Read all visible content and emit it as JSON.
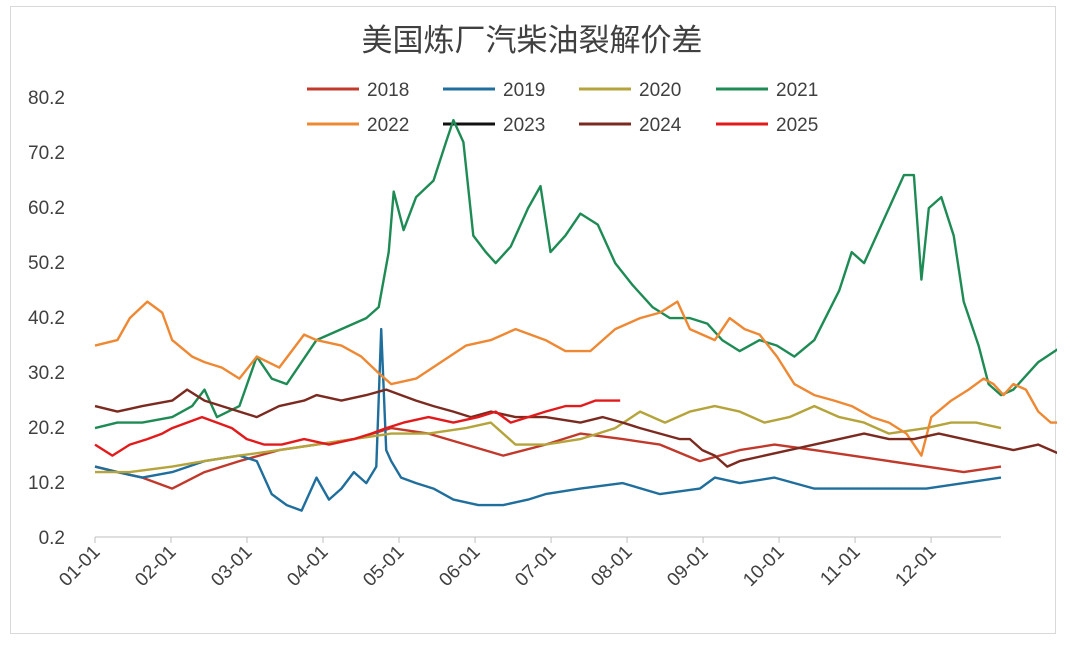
{
  "chart_data": {
    "type": "line",
    "title": "美国炼厂汽柴油裂解价差",
    "xlabel": "",
    "ylabel": "",
    "x_ticks": [
      "01-01",
      "02-01",
      "03-01",
      "04-01",
      "05-01",
      "06-01",
      "07-01",
      "08-01",
      "09-01",
      "10-01",
      "11-01",
      "12-01"
    ],
    "y_ticks": [
      "0.2",
      "10.2",
      "20.2",
      "30.2",
      "40.2",
      "50.2",
      "60.2",
      "70.2",
      "80.2"
    ],
    "ylim": [
      0.2,
      80.2
    ],
    "xlim_day_of_year": [
      1,
      365
    ],
    "x_unit": "day of year",
    "grid": false,
    "legend_position": "top",
    "series": [
      {
        "name": "2018",
        "color": "#c0392b",
        "points": [
          [
            1,
            13
          ],
          [
            10,
            12
          ],
          [
            20,
            11
          ],
          [
            32,
            9
          ],
          [
            45,
            12
          ],
          [
            59,
            14
          ],
          [
            75,
            16
          ],
          [
            90,
            17
          ],
          [
            105,
            18
          ],
          [
            120,
            20
          ],
          [
            135,
            19
          ],
          [
            150,
            17
          ],
          [
            165,
            15
          ],
          [
            182,
            17
          ],
          [
            196,
            19
          ],
          [
            213,
            18
          ],
          [
            228,
            17
          ],
          [
            244,
            14
          ],
          [
            260,
            16
          ],
          [
            274,
            17
          ],
          [
            290,
            16
          ],
          [
            305,
            15
          ],
          [
            320,
            14
          ],
          [
            335,
            13
          ],
          [
            350,
            12
          ],
          [
            365,
            13
          ]
        ]
      },
      {
        "name": "2019",
        "color": "#1f6e9c",
        "points": [
          [
            1,
            13
          ],
          [
            10,
            12
          ],
          [
            20,
            11
          ],
          [
            32,
            12
          ],
          [
            45,
            14
          ],
          [
            59,
            15
          ],
          [
            66,
            14
          ],
          [
            72,
            8
          ],
          [
            78,
            6
          ],
          [
            84,
            5
          ],
          [
            90,
            11
          ],
          [
            95,
            7
          ],
          [
            100,
            9
          ],
          [
            105,
            12
          ],
          [
            110,
            10
          ],
          [
            114,
            13
          ],
          [
            116,
            38
          ],
          [
            118,
            16
          ],
          [
            120,
            14
          ],
          [
            124,
            11
          ],
          [
            130,
            10
          ],
          [
            137,
            9
          ],
          [
            145,
            7
          ],
          [
            155,
            6
          ],
          [
            165,
            6
          ],
          [
            175,
            7
          ],
          [
            182,
            8
          ],
          [
            196,
            9
          ],
          [
            213,
            10
          ],
          [
            228,
            8
          ],
          [
            244,
            9
          ],
          [
            250,
            11
          ],
          [
            260,
            10
          ],
          [
            274,
            11
          ],
          [
            290,
            9
          ],
          [
            305,
            9
          ],
          [
            320,
            9
          ],
          [
            335,
            9
          ],
          [
            350,
            10
          ],
          [
            365,
            11
          ]
        ]
      },
      {
        "name": "2020",
        "color": "#b5a33b",
        "points": [
          [
            1,
            12
          ],
          [
            15,
            12
          ],
          [
            32,
            13
          ],
          [
            45,
            14
          ],
          [
            59,
            15
          ],
          [
            75,
            16
          ],
          [
            90,
            17
          ],
          [
            105,
            18
          ],
          [
            120,
            19
          ],
          [
            135,
            19
          ],
          [
            150,
            20
          ],
          [
            160,
            21
          ],
          [
            170,
            17
          ],
          [
            182,
            17
          ],
          [
            196,
            18
          ],
          [
            210,
            20
          ],
          [
            220,
            23
          ],
          [
            230,
            21
          ],
          [
            240,
            23
          ],
          [
            250,
            24
          ],
          [
            260,
            23
          ],
          [
            270,
            21
          ],
          [
            280,
            22
          ],
          [
            290,
            24
          ],
          [
            300,
            22
          ],
          [
            310,
            21
          ],
          [
            320,
            19
          ],
          [
            335,
            20
          ],
          [
            345,
            21
          ],
          [
            355,
            21
          ],
          [
            365,
            20
          ]
        ]
      },
      {
        "name": "2021",
        "color": "#1e8b55",
        "points": [
          [
            1,
            20
          ],
          [
            10,
            21
          ],
          [
            20,
            21
          ],
          [
            32,
            22
          ],
          [
            40,
            24
          ],
          [
            45,
            27
          ],
          [
            50,
            22
          ],
          [
            59,
            24
          ],
          [
            66,
            33
          ],
          [
            72,
            29
          ],
          [
            78,
            28
          ],
          [
            84,
            32
          ],
          [
            90,
            36
          ],
          [
            100,
            38
          ],
          [
            110,
            40
          ],
          [
            115,
            42
          ],
          [
            119,
            52
          ],
          [
            121,
            63
          ],
          [
            125,
            56
          ],
          [
            130,
            62
          ],
          [
            137,
            65
          ],
          [
            142,
            72
          ],
          [
            145,
            76
          ],
          [
            149,
            72
          ],
          [
            153,
            55
          ],
          [
            158,
            52
          ],
          [
            162,
            50
          ],
          [
            168,
            53
          ],
          [
            175,
            60
          ],
          [
            180,
            64
          ],
          [
            184,
            52
          ],
          [
            190,
            55
          ],
          [
            196,
            59
          ],
          [
            203,
            57
          ],
          [
            210,
            50
          ],
          [
            217,
            46
          ],
          [
            225,
            42
          ],
          [
            232,
            40
          ],
          [
            240,
            40
          ],
          [
            247,
            39
          ],
          [
            253,
            36
          ],
          [
            260,
            34
          ],
          [
            268,
            36
          ],
          [
            275,
            35
          ],
          [
            282,
            33
          ],
          [
            290,
            36
          ],
          [
            300,
            45
          ],
          [
            305,
            52
          ],
          [
            310,
            50
          ],
          [
            316,
            56
          ],
          [
            320,
            60
          ],
          [
            326,
            66
          ],
          [
            330,
            66
          ],
          [
            333,
            47
          ],
          [
            336,
            60
          ],
          [
            341,
            62
          ],
          [
            346,
            55
          ],
          [
            350,
            43
          ],
          [
            356,
            35
          ],
          [
            360,
            28
          ],
          [
            365,
            26
          ],
          [
            370,
            27
          ],
          [
            380,
            32
          ],
          [
            390,
            35
          ],
          [
            395,
            38
          ],
          [
            398,
            39
          ]
        ]
      },
      {
        "name": "2022",
        "color": "#ee8833",
        "points": [
          [
            1,
            35
          ],
          [
            10,
            36
          ],
          [
            15,
            40
          ],
          [
            22,
            43
          ],
          [
            28,
            41
          ],
          [
            32,
            36
          ],
          [
            40,
            33
          ],
          [
            45,
            32
          ],
          [
            52,
            31
          ],
          [
            59,
            29
          ],
          [
            66,
            33
          ],
          [
            75,
            31
          ],
          [
            85,
            37
          ],
          [
            90,
            36
          ],
          [
            100,
            35
          ],
          [
            108,
            33
          ],
          [
            115,
            30
          ],
          [
            120,
            28
          ],
          [
            130,
            29
          ],
          [
            140,
            32
          ],
          [
            150,
            35
          ],
          [
            160,
            36
          ],
          [
            170,
            38
          ],
          [
            182,
            36
          ],
          [
            190,
            34
          ],
          [
            200,
            34
          ],
          [
            210,
            38
          ],
          [
            220,
            40
          ],
          [
            228,
            41
          ],
          [
            235,
            43
          ],
          [
            240,
            38
          ],
          [
            250,
            36
          ],
          [
            256,
            40
          ],
          [
            262,
            38
          ],
          [
            268,
            37
          ],
          [
            275,
            33
          ],
          [
            282,
            28
          ],
          [
            290,
            26
          ],
          [
            298,
            25
          ],
          [
            305,
            24
          ],
          [
            313,
            22
          ],
          [
            320,
            21
          ],
          [
            327,
            19
          ],
          [
            333,
            15
          ],
          [
            337,
            22
          ],
          [
            345,
            25
          ],
          [
            352,
            27
          ],
          [
            358,
            29
          ],
          [
            362,
            28
          ],
          [
            366,
            26
          ],
          [
            370,
            28
          ],
          [
            375,
            27
          ],
          [
            380,
            23
          ],
          [
            385,
            21
          ],
          [
            392,
            21
          ],
          [
            398,
            20
          ]
        ]
      },
      {
        "name": "2023",
        "color": "#111111",
        "points": []
      },
      {
        "name": "2024",
        "color": "#7b2a20",
        "points": [
          [
            1,
            24
          ],
          [
            10,
            23
          ],
          [
            20,
            24
          ],
          [
            32,
            25
          ],
          [
            38,
            27
          ],
          [
            45,
            25
          ],
          [
            52,
            24
          ],
          [
            59,
            23
          ],
          [
            66,
            22
          ],
          [
            75,
            24
          ],
          [
            85,
            25
          ],
          [
            90,
            26
          ],
          [
            100,
            25
          ],
          [
            110,
            26
          ],
          [
            118,
            27
          ],
          [
            124,
            26
          ],
          [
            130,
            25
          ],
          [
            137,
            24
          ],
          [
            145,
            23
          ],
          [
            152,
            22
          ],
          [
            160,
            23
          ],
          [
            170,
            22
          ],
          [
            182,
            22
          ],
          [
            196,
            21
          ],
          [
            205,
            22
          ],
          [
            213,
            21
          ],
          [
            220,
            20
          ],
          [
            228,
            19
          ],
          [
            236,
            18
          ],
          [
            240,
            18
          ],
          [
            245,
            16
          ],
          [
            250,
            15
          ],
          [
            255,
            13
          ],
          [
            260,
            14
          ],
          [
            270,
            15
          ],
          [
            280,
            16
          ],
          [
            290,
            17
          ],
          [
            300,
            18
          ],
          [
            310,
            19
          ],
          [
            320,
            18
          ],
          [
            330,
            18
          ],
          [
            340,
            19
          ],
          [
            350,
            18
          ],
          [
            360,
            17
          ],
          [
            370,
            16
          ],
          [
            380,
            17
          ],
          [
            390,
            15
          ],
          [
            398,
            16
          ]
        ]
      },
      {
        "name": "2025",
        "color": "#e31a1c",
        "points": [
          [
            1,
            17
          ],
          [
            8,
            15
          ],
          [
            15,
            17
          ],
          [
            22,
            18
          ],
          [
            28,
            19
          ],
          [
            32,
            20
          ],
          [
            38,
            21
          ],
          [
            44,
            22
          ],
          [
            50,
            21
          ],
          [
            56,
            20
          ],
          [
            62,
            18
          ],
          [
            69,
            17
          ],
          [
            76,
            17
          ],
          [
            85,
            18
          ],
          [
            95,
            17
          ],
          [
            105,
            18
          ],
          [
            112,
            19
          ],
          [
            118,
            20
          ],
          [
            125,
            21
          ],
          [
            135,
            22
          ],
          [
            145,
            21
          ],
          [
            155,
            22
          ],
          [
            162,
            23
          ],
          [
            168,
            21
          ],
          [
            175,
            22
          ],
          [
            182,
            23
          ],
          [
            190,
            24
          ],
          [
            196,
            24
          ],
          [
            202,
            25
          ],
          [
            208,
            25
          ],
          [
            212,
            25
          ]
        ]
      }
    ]
  }
}
